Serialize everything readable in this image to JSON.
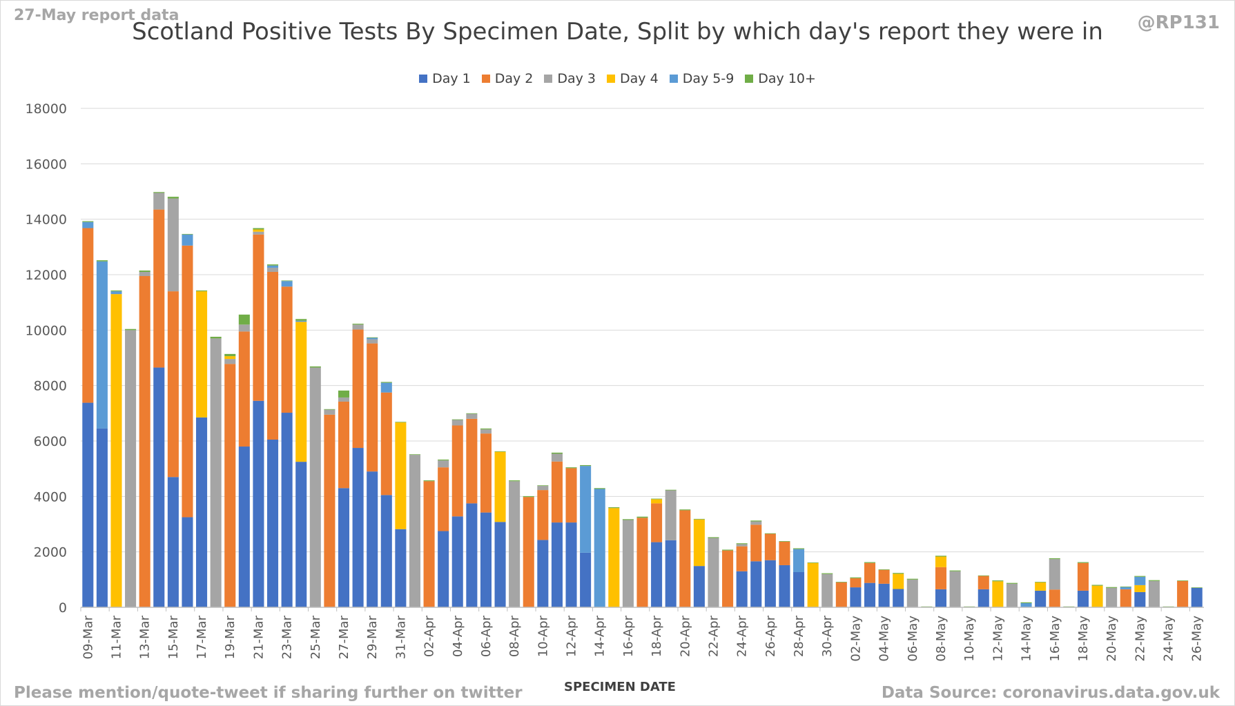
{
  "notes": {
    "report": "27-May report data",
    "handle": "@RP131",
    "footer_left": "Please mention/quote-tweet if sharing further on twitter",
    "footer_right": "Data Source: coronavirus.data.gov.uk"
  },
  "chart_data": {
    "type": "bar",
    "stacked": true,
    "title": "Scotland Positive Tests By Specimen Date, Split by which day's report they were in",
    "xlabel": "SPECIMEN DATE",
    "ylabel": "",
    "ylim": [
      0,
      18000
    ],
    "yticks": [
      0,
      2000,
      4000,
      6000,
      8000,
      10000,
      12000,
      14000,
      16000,
      18000
    ],
    "grid": true,
    "legend_position": "top",
    "categories": [
      "09-Mar",
      "10-Mar",
      "11-Mar",
      "12-Mar",
      "13-Mar",
      "14-Mar",
      "15-Mar",
      "16-Mar",
      "17-Mar",
      "18-Mar",
      "19-Mar",
      "20-Mar",
      "21-Mar",
      "22-Mar",
      "23-Mar",
      "24-Mar",
      "25-Mar",
      "26-Mar",
      "27-Mar",
      "28-Mar",
      "29-Mar",
      "30-Mar",
      "31-Mar",
      "01-Apr",
      "02-Apr",
      "03-Apr",
      "04-Apr",
      "05-Apr",
      "06-Apr",
      "07-Apr",
      "08-Apr",
      "09-Apr",
      "10-Apr",
      "11-Apr",
      "12-Apr",
      "13-Apr",
      "14-Apr",
      "15-Apr",
      "16-Apr",
      "17-Apr",
      "18-Apr",
      "19-Apr",
      "20-Apr",
      "21-Apr",
      "22-Apr",
      "23-Apr",
      "24-Apr",
      "25-Apr",
      "26-Apr",
      "27-Apr",
      "28-Apr",
      "29-Apr",
      "30-Apr",
      "01-May",
      "02-May",
      "03-May",
      "04-May",
      "05-May",
      "06-May",
      "07-May",
      "08-May",
      "09-May",
      "10-May",
      "11-May",
      "12-May",
      "13-May",
      "14-May",
      "15-May",
      "16-May",
      "17-May",
      "18-May",
      "19-May",
      "20-May",
      "21-May",
      "22-May",
      "23-May",
      "24-May",
      "25-May",
      "26-May"
    ],
    "tick_labels": [
      "09-Mar",
      "11-Mar",
      "13-Mar",
      "15-Mar",
      "17-Mar",
      "19-Mar",
      "21-Mar",
      "23-Mar",
      "25-Mar",
      "27-Mar",
      "29-Mar",
      "31-Mar",
      "02-Apr",
      "04-Apr",
      "06-Apr",
      "08-Apr",
      "10-Apr",
      "12-Apr",
      "14-Apr",
      "16-Apr",
      "18-Apr",
      "20-Apr",
      "22-Apr",
      "24-Apr",
      "26-Apr",
      "28-Apr",
      "30-Apr",
      "02-May",
      "04-May",
      "06-May",
      "08-May",
      "10-May",
      "12-May",
      "14-May",
      "16-May",
      "18-May",
      "20-May",
      "22-May",
      "24-May",
      "26-May"
    ],
    "series": [
      {
        "name": "Day 1",
        "color": "#4472c4",
        "values": [
          7380,
          6450,
          0,
          0,
          0,
          8650,
          4700,
          3250,
          6850,
          0,
          0,
          5800,
          7450,
          6050,
          7020,
          5250,
          0,
          0,
          4300,
          5750,
          4900,
          4050,
          2820,
          0,
          0,
          2750,
          3280,
          3750,
          3420,
          3080,
          0,
          0,
          2430,
          3060,
          3060,
          1970,
          0,
          0,
          0,
          0,
          2350,
          2420,
          0,
          1490,
          0,
          0,
          1300,
          1660,
          1700,
          1520,
          1270,
          0,
          0,
          0,
          720,
          880,
          850,
          660,
          0,
          0,
          650,
          0,
          0,
          650,
          0,
          0,
          0,
          600,
          0,
          0,
          600,
          0,
          0,
          0,
          550,
          0,
          0,
          0,
          700
        ]
      },
      {
        "name": "Day 2",
        "color": "#ed7d31",
        "values": [
          6300,
          0,
          0,
          0,
          11950,
          5700,
          6700,
          9800,
          0,
          0,
          8780,
          4150,
          6000,
          6050,
          4550,
          0,
          0,
          6950,
          3120,
          4270,
          4620,
          3700,
          0,
          0,
          4550,
          2300,
          3280,
          3050,
          2850,
          0,
          0,
          3980,
          1800,
          2200,
          1960,
          0,
          0,
          0,
          0,
          3230,
          1400,
          0,
          3500,
          0,
          0,
          2050,
          900,
          1320,
          950,
          850,
          0,
          0,
          0,
          900,
          330,
          720,
          500,
          0,
          0,
          0,
          800,
          0,
          0,
          480,
          0,
          0,
          0,
          0,
          640,
          0,
          1000,
          0,
          0,
          650,
          0,
          0,
          0,
          950,
          0
        ]
      },
      {
        "name": "Day 3",
        "color": "#a5a5a5",
        "values": [
          0,
          0,
          0,
          10000,
          150,
          600,
          3350,
          0,
          0,
          9700,
          180,
          250,
          100,
          150,
          0,
          0,
          8650,
          180,
          150,
          180,
          150,
          0,
          0,
          5500,
          0,
          250,
          200,
          180,
          150,
          0,
          4550,
          0,
          150,
          280,
          0,
          0,
          0,
          0,
          3150,
          0,
          0,
          1800,
          0,
          0,
          2500,
          0,
          80,
          120,
          0,
          0,
          0,
          0,
          1200,
          0,
          0,
          0,
          0,
          0,
          1000,
          0,
          0,
          1300,
          0,
          0,
          0,
          850,
          0,
          0,
          1100,
          0,
          0,
          0,
          700,
          0,
          0,
          950,
          0,
          0,
          0
        ]
      },
      {
        "name": "Day 4",
        "color": "#ffc000",
        "values": [
          0,
          0,
          11300,
          0,
          0,
          0,
          0,
          0,
          4550,
          0,
          100,
          0,
          80,
          0,
          0,
          5050,
          0,
          0,
          0,
          0,
          0,
          0,
          3850,
          0,
          0,
          0,
          0,
          0,
          0,
          2530,
          0,
          0,
          0,
          0,
          0,
          0,
          0,
          3580,
          0,
          0,
          150,
          0,
          0,
          1680,
          0,
          0,
          0,
          0,
          0,
          0,
          0,
          1600,
          0,
          0,
          0,
          0,
          0,
          550,
          0,
          0,
          380,
          0,
          0,
          0,
          940,
          0,
          0,
          300,
          0,
          0,
          0,
          780,
          0,
          0,
          250,
          0,
          0,
          0,
          0
        ]
      },
      {
        "name": "Day 5-9",
        "color": "#5b9bd5",
        "values": [
          220,
          6030,
          100,
          0,
          0,
          0,
          0,
          400,
          0,
          0,
          0,
          0,
          0,
          80,
          200,
          40,
          0,
          0,
          0,
          0,
          50,
          350,
          0,
          0,
          0,
          0,
          0,
          0,
          0,
          0,
          0,
          0,
          0,
          0,
          0,
          3130,
          4270,
          0,
          0,
          0,
          0,
          0,
          0,
          0,
          0,
          0,
          0,
          0,
          0,
          0,
          830,
          0,
          0,
          0,
          0,
          0,
          0,
          0,
          0,
          0,
          0,
          0,
          0,
          0,
          0,
          0,
          150,
          0,
          0,
          0,
          0,
          0,
          0,
          80,
          300,
          0,
          0,
          0,
          0
        ]
      },
      {
        "name": "Day 10+",
        "color": "#70ad47",
        "values": [
          30,
          40,
          30,
          40,
          50,
          30,
          60,
          20,
          30,
          60,
          80,
          360,
          50,
          40,
          20,
          60,
          40,
          20,
          250,
          30,
          20,
          30,
          20,
          20,
          30,
          30,
          20,
          20,
          30,
          20,
          30,
          30,
          20,
          40,
          30,
          30,
          30,
          30,
          30,
          40,
          20,
          20,
          30,
          20,
          30,
          30,
          30,
          30,
          20,
          20,
          30,
          20,
          30,
          20,
          30,
          30,
          20,
          30,
          30,
          30,
          30,
          30,
          30,
          20,
          30,
          30,
          30,
          20,
          30,
          30,
          30,
          30,
          30,
          20,
          30,
          30,
          30,
          20,
          20
        ]
      }
    ]
  }
}
